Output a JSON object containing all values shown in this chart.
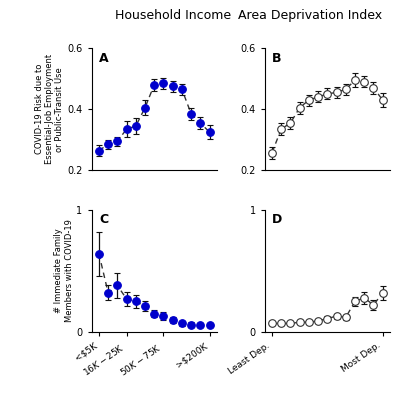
{
  "panel_A": {
    "title": "Household Income",
    "label": "A",
    "y": [
      0.265,
      0.285,
      0.295,
      0.335,
      0.345,
      0.405,
      0.48,
      0.485,
      0.475,
      0.465,
      0.385,
      0.355,
      0.325
    ],
    "yerr": [
      0.018,
      0.015,
      0.015,
      0.025,
      0.025,
      0.025,
      0.02,
      0.018,
      0.018,
      0.018,
      0.02,
      0.02,
      0.022
    ],
    "color": "#0000cc",
    "filled": true,
    "ylim": [
      0.2,
      0.6
    ],
    "yticks": [
      0.2,
      0.4,
      0.6
    ],
    "n_points": 13
  },
  "panel_B": {
    "title": "Area Deprivation Index",
    "label": "B",
    "y": [
      0.258,
      0.335,
      0.355,
      0.405,
      0.43,
      0.44,
      0.45,
      0.455,
      0.465,
      0.495,
      0.49,
      0.47,
      0.43
    ],
    "yerr": [
      0.02,
      0.02,
      0.02,
      0.02,
      0.018,
      0.018,
      0.018,
      0.018,
      0.018,
      0.022,
      0.018,
      0.02,
      0.022
    ],
    "color": "#888888",
    "filled": false,
    "ylim": [
      0.2,
      0.6
    ],
    "yticks": [
      0.2,
      0.4,
      0.6
    ],
    "n_points": 13
  },
  "panel_C": {
    "label": "C",
    "y": [
      0.64,
      0.32,
      0.38,
      0.27,
      0.25,
      0.21,
      0.15,
      0.13,
      0.1,
      0.07,
      0.06,
      0.055,
      0.055
    ],
    "yerr": [
      0.18,
      0.06,
      0.1,
      0.06,
      0.05,
      0.04,
      0.03,
      0.03,
      0.025,
      0.02,
      0.02,
      0.018,
      0.018
    ],
    "color": "#0000cc",
    "filled": true,
    "ylim": [
      0,
      1
    ],
    "yticks": [
      0,
      1
    ],
    "xtick_labels": [
      "<$5K",
      "$16K-$25K",
      "$50K-$75K",
      ">$200K"
    ],
    "xtick_positions": [
      0,
      3,
      7,
      12
    ],
    "n_points": 13
  },
  "panel_D": {
    "label": "D",
    "y": [
      0.07,
      0.07,
      0.07,
      0.08,
      0.08,
      0.09,
      0.11,
      0.13,
      0.12,
      0.25,
      0.28,
      0.22,
      0.32
    ],
    "yerr": [
      0.015,
      0.015,
      0.015,
      0.015,
      0.015,
      0.015,
      0.02,
      0.02,
      0.02,
      0.04,
      0.05,
      0.04,
      0.055
    ],
    "color": "#888888",
    "filled": false,
    "ylim": [
      0,
      1
    ],
    "yticks": [
      0,
      1
    ],
    "xtick_labels": [
      "Least Dep.",
      "Most Dep."
    ],
    "xtick_positions": [
      0,
      12
    ],
    "n_points": 13
  },
  "ylabel_top": "COVID-19 Risk due to\nEssential-Job Employment\nor Public-Transit Use",
  "ylabel_bottom": "# Immediate Family\nMembers with COVID-19",
  "fig_bgcolor": "#ffffff",
  "markersize": 5.5,
  "linewidth": 1.0,
  "capsize": 2,
  "elinewidth": 0.9,
  "title_fontsize": 9,
  "label_fontsize": 9,
  "ylabel_fontsize": 6,
  "tick_labelsize": 7,
  "xtick_labelsize": 6.5
}
